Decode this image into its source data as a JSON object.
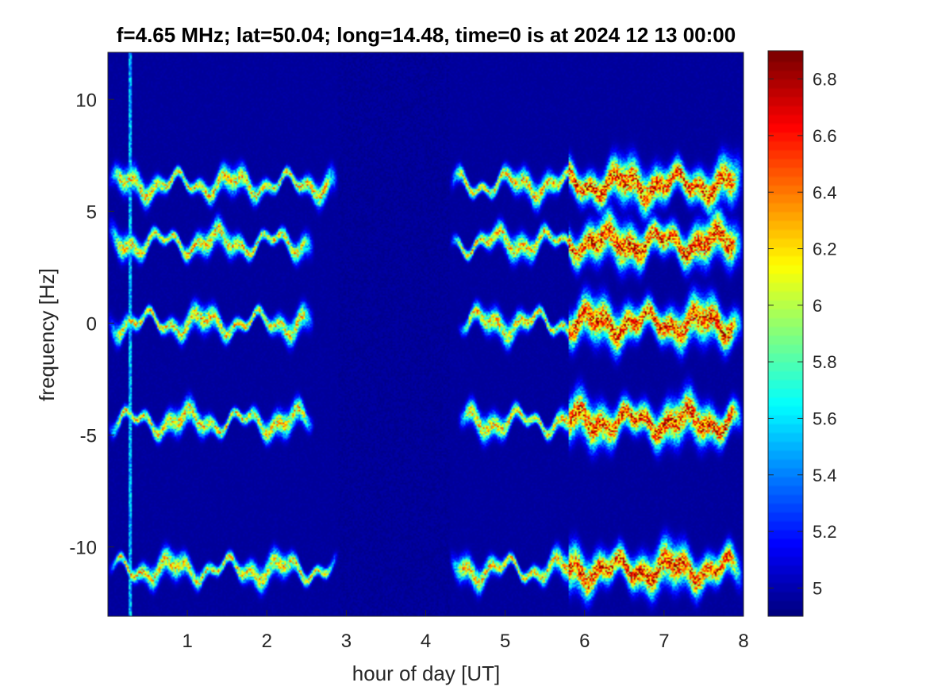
{
  "chart_data": {
    "type": "heatmap",
    "title": "f=4.65 MHz;  lat=50.04; long=14.48, time=0 is at 2024 12 13 00:00",
    "xlabel": "hour of day [UT]",
    "ylabel": "frequency [Hz]",
    "xlim": [
      0,
      8
    ],
    "ylim": [
      -13.1,
      12.1
    ],
    "x_ticks": [
      1,
      2,
      3,
      4,
      5,
      6,
      7,
      8
    ],
    "y_ticks": [
      10,
      5,
      0,
      -5,
      -10
    ],
    "colorbar": {
      "colormap": "jet",
      "range": [
        4.9,
        6.9
      ],
      "ticks": [
        6.8,
        6.6,
        6.4,
        6.2,
        6,
        5.8,
        5.6,
        5.4,
        5.2,
        5
      ]
    },
    "background_value": 4.95,
    "traces": [
      {
        "center_hz": 6.2,
        "segments": [
          [
            0,
            2.9
          ],
          [
            4.3,
            8
          ]
        ]
      },
      {
        "center_hz": 3.6,
        "segments": [
          [
            0,
            2.6
          ],
          [
            4.3,
            8
          ]
        ]
      },
      {
        "center_hz": 0.0,
        "segments": [
          [
            0,
            2.6
          ],
          [
            4.4,
            8
          ]
        ]
      },
      {
        "center_hz": -4.4,
        "segments": [
          [
            0,
            2.6
          ],
          [
            4.4,
            8
          ]
        ]
      },
      {
        "center_hz": -11.0,
        "segments": [
          [
            0,
            2.9
          ],
          [
            4.3,
            8
          ]
        ]
      }
    ],
    "grid": false
  }
}
